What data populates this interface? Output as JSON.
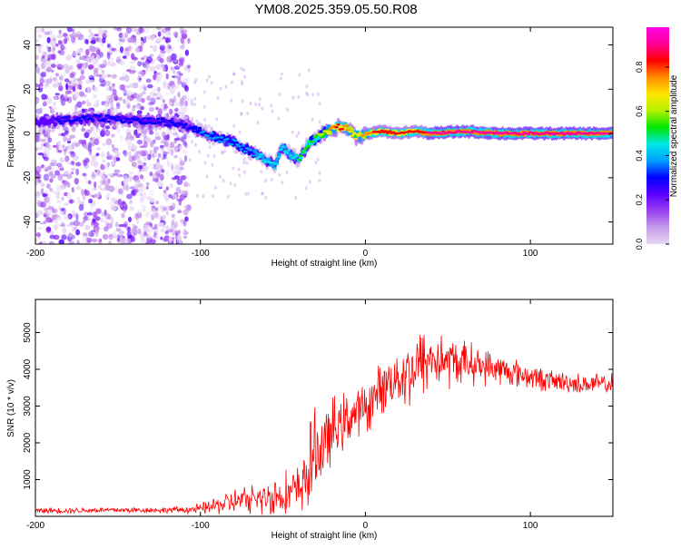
{
  "title": "YM08.2025.359.05.50.R08",
  "chart_data": [
    {
      "type": "heatmap",
      "name": "spectrogram",
      "xlabel": "Height of straight line (km)",
      "ylabel": "Frequency (Hz)",
      "xlim": [
        -200,
        150
      ],
      "ylim": [
        -50,
        48
      ],
      "xticks": [
        -200,
        -100,
        0,
        100
      ],
      "xtick_labels": [
        "-200",
        "-100",
        "0",
        "100"
      ],
      "yticks": [
        -40,
        -20,
        0,
        20,
        40
      ],
      "ytick_labels": [
        "-40",
        "-20",
        "0",
        "20",
        "40"
      ],
      "grid": false,
      "colorbar": {
        "label": "Normalized spectral amplitude",
        "range": [
          0,
          0.98
        ],
        "ticks": [
          0,
          0.2,
          0.4,
          0.6,
          0.8
        ],
        "tick_labels": [
          "0.0",
          "0.2",
          "0.4",
          "0.6",
          "0.8"
        ],
        "colors": [
          "#e6d8f5",
          "#c59be8",
          "#9a3ff0",
          "#5a00ff",
          "#0000ff",
          "#00a0ff",
          "#00e6e6",
          "#00e600",
          "#b4f000",
          "#ffe600",
          "#ff8c00",
          "#ff0000",
          "#ff0096",
          "#ff00e6"
        ]
      },
      "ridge": {
        "x": [
          -200,
          -180,
          -160,
          -140,
          -120,
          -110,
          -100,
          -90,
          -80,
          -70,
          -60,
          -55,
          -50,
          -45,
          -40,
          -35,
          -30,
          -25,
          -20,
          -15,
          -10,
          -5,
          0,
          10,
          20,
          30,
          40,
          60,
          80,
          100,
          120,
          150
        ],
        "y": [
          5,
          6,
          7,
          6,
          5,
          4,
          1,
          -2,
          -4,
          -8,
          -12,
          -15,
          -6,
          -10,
          -12,
          -5,
          -2,
          0,
          2,
          3,
          2,
          -2,
          0,
          1,
          0,
          1,
          0,
          1,
          0,
          0,
          0,
          0
        ],
        "amplitude": [
          0.25,
          0.3,
          0.3,
          0.3,
          0.3,
          0.3,
          0.35,
          0.4,
          0.4,
          0.4,
          0.45,
          0.45,
          0.45,
          0.45,
          0.5,
          0.5,
          0.55,
          0.6,
          0.75,
          0.8,
          0.7,
          0.65,
          0.75,
          0.8,
          0.8,
          0.82,
          0.85,
          0.87,
          0.88,
          0.88,
          0.88,
          0.88
        ]
      },
      "noise_region": {
        "x": [
          -200,
          -107
        ],
        "amplitude_max": 0.15
      }
    },
    {
      "type": "line",
      "name": "snr",
      "xlabel": "Height of straight line (km)",
      "ylabel": "SNR (10 * v/v)",
      "xlim": [
        -200,
        150
      ],
      "ylim": [
        0,
        5900
      ],
      "xticks": [
        -200,
        -100,
        0,
        100
      ],
      "xtick_labels": [
        "-200",
        "-100",
        "0",
        "100"
      ],
      "yticks": [
        1000,
        2000,
        3000,
        4000,
        5000
      ],
      "ytick_labels": [
        "1000",
        "2000",
        "3000",
        "4000",
        "5000"
      ],
      "grid": false,
      "color": "#ff0000",
      "series": [
        {
          "name": "SNR",
          "x": [
            -200,
            -180,
            -160,
            -140,
            -120,
            -110,
            -100,
            -90,
            -80,
            -70,
            -60,
            -50,
            -40,
            -35,
            -30,
            -25,
            -20,
            -15,
            -10,
            -5,
            0,
            5,
            10,
            15,
            20,
            25,
            30,
            35,
            40,
            50,
            60,
            70,
            80,
            90,
            100,
            110,
            120,
            130,
            140,
            150
          ],
          "y": [
            150,
            160,
            170,
            170,
            170,
            180,
            200,
            300,
            400,
            450,
            500,
            600,
            700,
            1200,
            1800,
            1900,
            2300,
            2500,
            2700,
            2800,
            2900,
            3200,
            3500,
            3700,
            3800,
            3900,
            4000,
            4200,
            4300,
            4200,
            4200,
            4100,
            4000,
            3900,
            3800,
            3700,
            3650,
            3600,
            3600,
            3600
          ],
          "spread": [
            80,
            80,
            80,
            80,
            80,
            100,
            150,
            250,
            350,
            400,
            500,
            600,
            700,
            1100,
            1200,
            1000,
            900,
            800,
            700,
            700,
            700,
            700,
            700,
            700,
            800,
            900,
            1000,
            1000,
            900,
            700,
            600,
            500,
            450,
            400,
            350,
            300,
            300,
            280,
            280,
            280
          ]
        }
      ]
    }
  ]
}
